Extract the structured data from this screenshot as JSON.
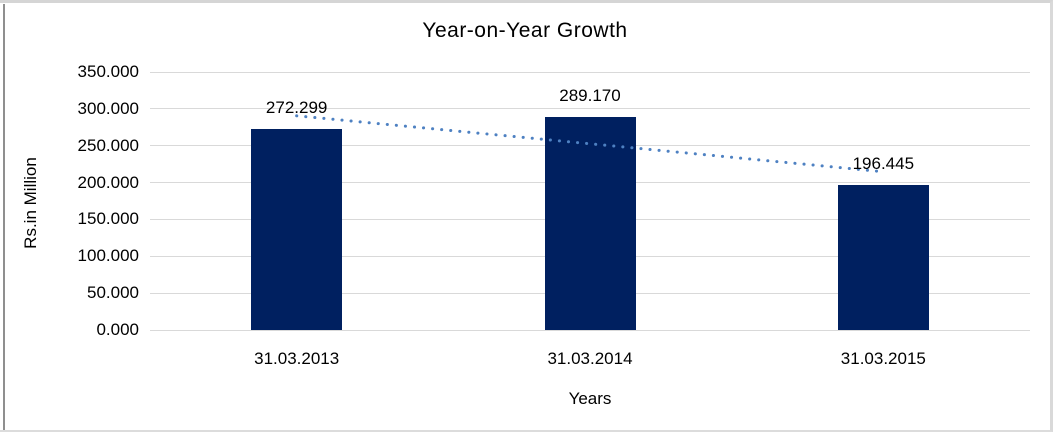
{
  "chart_data": {
    "type": "bar",
    "title": "Year-on-Year Growth",
    "xlabel": "Years",
    "ylabel": "Rs.in Million",
    "categories": [
      "31.03.2013",
      "31.03.2014",
      "31.03.2015"
    ],
    "series": [
      {
        "name": "Rs.in Million",
        "values": [
          272.299,
          289.17,
          196.445
        ]
      }
    ],
    "data_labels": [
      "272.299",
      "289.170",
      "196.445"
    ],
    "yticks": [
      {
        "value": 0,
        "label": "0.000"
      },
      {
        "value": 50,
        "label": "50.000"
      },
      {
        "value": 100,
        "label": "100.000"
      },
      {
        "value": 150,
        "label": "150.000"
      },
      {
        "value": 200,
        "label": "200.000"
      },
      {
        "value": 250,
        "label": "250.000"
      },
      {
        "value": 300,
        "label": "300.000"
      },
      {
        "value": 350,
        "label": "350.000"
      }
    ],
    "ylim": [
      0,
      350
    ],
    "grid": true,
    "legend": "none",
    "trendline": {
      "type": "linear",
      "style": "dotted"
    },
    "colors": {
      "bar": "#002060",
      "trendline": "#4E81C2",
      "gridline": "#d9d9d9",
      "text": "#000000",
      "frame_light": "#d9d9d9",
      "frame_dark": "#8f8f8f"
    }
  }
}
